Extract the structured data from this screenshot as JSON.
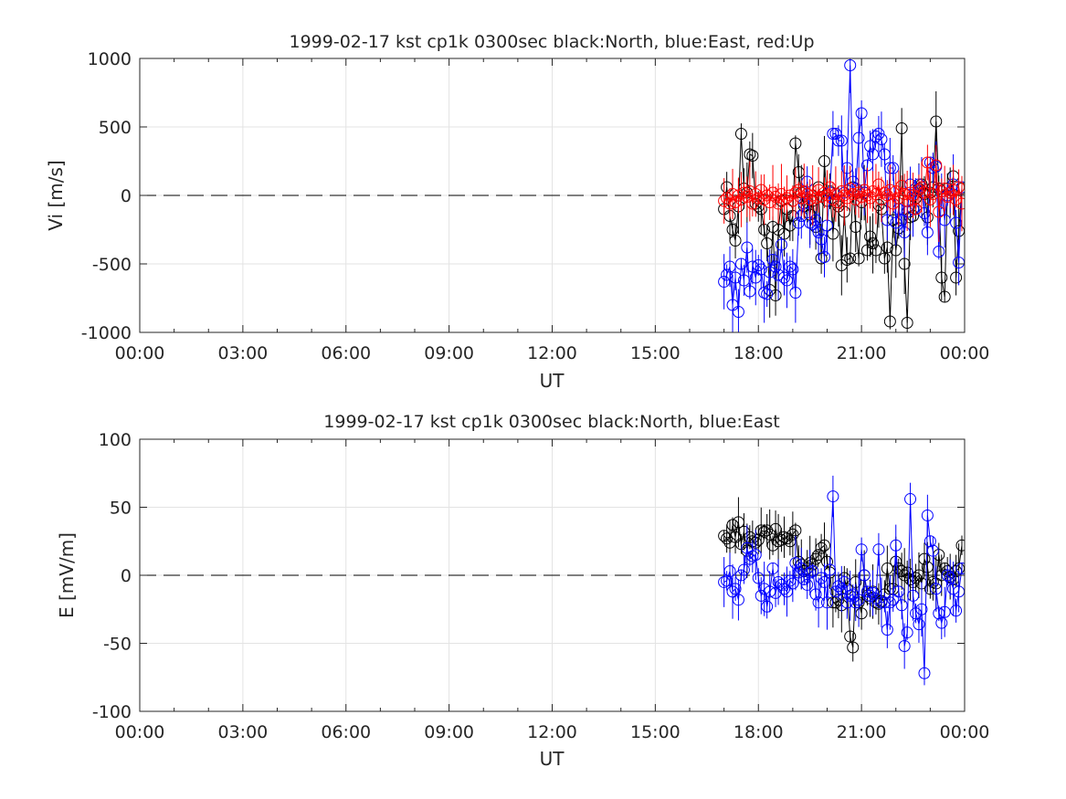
{
  "colors": {
    "north": "#000000",
    "east": "#0000ff",
    "up": "#ff0000",
    "grid": "#e3e3e3",
    "axis": "#262626"
  },
  "chart_data": [
    {
      "type": "scatter",
      "title": "1999-02-17 kst cp1k 0300sec black:North, blue:East, red:Up",
      "xlabel": "UT",
      "ylabel": "Vi [m/s]",
      "xlim": [
        0,
        24
      ],
      "ylim": [
        -1000,
        1000
      ],
      "x_ticks": [
        "00:00",
        "03:00",
        "06:00",
        "09:00",
        "12:00",
        "15:00",
        "18:00",
        "21:00",
        "00:00"
      ],
      "y_ticks": [
        "1000",
        "500",
        "0",
        "-500",
        "-1000"
      ],
      "grid": true,
      "reference_line_y": 0,
      "x_units": "hours UT",
      "series": [
        {
          "name": "North",
          "color": "black",
          "x": [
            17.0,
            17.08,
            17.17,
            17.25,
            17.33,
            17.42,
            17.5,
            17.58,
            17.67,
            17.75,
            17.83,
            17.92,
            18.0,
            18.08,
            18.17,
            18.25,
            18.33,
            18.42,
            18.5,
            18.58,
            18.67,
            18.75,
            18.83,
            18.92,
            19.0,
            19.08,
            19.17,
            19.25,
            19.33,
            19.42,
            19.5,
            19.58,
            19.67,
            19.75,
            19.83,
            19.92,
            20.0,
            20.08,
            20.17,
            20.25,
            20.33,
            20.42,
            20.5,
            20.58,
            20.67,
            20.75,
            20.83,
            20.92,
            21.0,
            21.08,
            21.17,
            21.25,
            21.33,
            21.42,
            21.5,
            21.58,
            21.67,
            21.75,
            21.83,
            21.92,
            22.0,
            22.08,
            22.17,
            22.25,
            22.33,
            22.42,
            22.5,
            22.58,
            22.67,
            22.75,
            22.83,
            22.92,
            23.0,
            23.08,
            23.17,
            23.25,
            23.33,
            23.42,
            23.5,
            23.58,
            23.67,
            23.75,
            23.83,
            23.92
          ],
          "y": [
            -100,
            60,
            -150,
            -250,
            -330,
            -80,
            450,
            50,
            20,
            300,
            290,
            -60,
            -80,
            -100,
            -250,
            -350,
            -690,
            -230,
            -730,
            -250,
            -40,
            -280,
            -100,
            -220,
            -150,
            380,
            170,
            20,
            -80,
            -50,
            -140,
            -40,
            -230,
            60,
            -460,
            250,
            -40,
            30,
            -280,
            -50,
            -80,
            -510,
            -120,
            -470,
            -460,
            60,
            -230,
            -460,
            -50,
            20,
            -400,
            -300,
            -350,
            -400,
            -70,
            -100,
            -460,
            -380,
            -920,
            -180,
            -400,
            -240,
            490,
            -500,
            -930,
            -160,
            -150,
            -20,
            50,
            80,
            10,
            -160,
            20,
            60,
            540,
            50,
            -600,
            -740,
            50,
            20,
            140,
            -600,
            -260,
            50
          ]
        },
        {
          "name": "East",
          "color": "blue",
          "x": [
            17.0,
            17.08,
            17.17,
            17.25,
            17.33,
            17.42,
            17.5,
            17.58,
            17.67,
            17.75,
            17.83,
            17.92,
            18.0,
            18.08,
            18.17,
            18.25,
            18.33,
            18.42,
            18.5,
            18.58,
            18.67,
            18.75,
            18.83,
            18.92,
            19.0,
            19.08,
            19.17,
            19.25,
            19.33,
            19.42,
            19.5,
            19.58,
            19.67,
            19.75,
            19.83,
            19.92,
            20.0,
            20.08,
            20.17,
            20.25,
            20.33,
            20.42,
            20.5,
            20.58,
            20.67,
            20.75,
            20.83,
            20.92,
            21.0,
            21.08,
            21.17,
            21.25,
            21.33,
            21.42,
            21.5,
            21.58,
            21.67,
            21.75,
            21.83,
            21.92,
            22.0,
            22.08,
            22.17,
            22.25,
            22.33,
            22.42,
            22.5,
            22.58,
            22.67,
            22.75,
            22.83,
            22.92,
            23.0,
            23.08,
            23.17,
            23.25,
            23.33,
            23.42,
            23.5,
            23.58,
            23.67,
            23.75,
            23.83,
            23.92
          ],
          "y": [
            -630,
            -580,
            -520,
            -800,
            -600,
            -850,
            -500,
            -620,
            -380,
            -700,
            -520,
            -600,
            -510,
            -540,
            -710,
            -720,
            -560,
            -470,
            -520,
            -580,
            -360,
            -600,
            -620,
            -520,
            -540,
            -710,
            -200,
            -150,
            -60,
            100,
            -200,
            -210,
            -180,
            -270,
            -320,
            -450,
            -220,
            20,
            450,
            450,
            400,
            400,
            20,
            200,
            950,
            100,
            50,
            420,
            600,
            20,
            220,
            360,
            300,
            430,
            450,
            410,
            300,
            -180,
            200,
            200,
            -200,
            -100,
            -180,
            -270,
            -120,
            80,
            -100,
            50,
            80,
            60,
            -130,
            -270,
            240,
            200,
            210,
            -410,
            30,
            -180,
            0,
            20,
            80,
            -200,
            -490,
            60
          ]
        },
        {
          "name": "Up",
          "color": "red",
          "x": [
            17.0,
            17.08,
            17.17,
            17.25,
            17.33,
            17.42,
            17.5,
            17.58,
            17.67,
            17.75,
            17.83,
            17.92,
            18.0,
            18.08,
            18.17,
            18.25,
            18.33,
            18.42,
            18.5,
            18.58,
            18.67,
            18.75,
            18.83,
            18.92,
            19.0,
            19.08,
            19.17,
            19.25,
            19.33,
            19.42,
            19.5,
            19.58,
            19.67,
            19.75,
            19.83,
            19.92,
            20.0,
            20.08,
            20.17,
            20.25,
            20.33,
            20.42,
            20.5,
            20.58,
            20.67,
            20.75,
            20.83,
            20.92,
            21.0,
            21.08,
            21.17,
            21.25,
            21.33,
            21.42,
            21.5,
            21.58,
            21.67,
            21.75,
            21.83,
            21.92,
            22.0,
            22.08,
            22.17,
            22.25,
            22.33,
            22.42,
            22.5,
            22.58,
            22.67,
            22.75,
            22.83,
            22.92,
            23.0,
            23.08,
            23.17,
            23.25,
            23.33,
            23.42,
            23.5,
            23.58,
            23.67,
            23.75,
            23.83,
            23.92
          ],
          "y": [
            -40,
            -20,
            -60,
            10,
            -50,
            0,
            -30,
            20,
            -10,
            30,
            -60,
            10,
            -20,
            40,
            -30,
            0,
            -50,
            20,
            -10,
            -60,
            10,
            -30,
            -20,
            0,
            -40,
            20,
            40,
            -20,
            30,
            10,
            -30,
            0,
            -20,
            40,
            -10,
            20,
            0,
            60,
            -30,
            10,
            -50,
            30,
            0,
            -20,
            50,
            10,
            -30,
            20,
            -10,
            40,
            0,
            -20,
            30,
            10,
            80,
            -30,
            20,
            0,
            40,
            -60,
            30,
            -20,
            70,
            10,
            -40,
            20,
            0,
            -100,
            40,
            60,
            20,
            240,
            -30,
            10,
            220,
            -120,
            30,
            50,
            -10,
            20,
            40,
            -30,
            60,
            -60
          ]
        }
      ]
    },
    {
      "type": "scatter",
      "title": "1999-02-17 kst cp1k 0300sec black:North, blue:East",
      "xlabel": "UT",
      "ylabel": "E [mV/m]",
      "xlim": [
        0,
        24
      ],
      "ylim": [
        -100,
        100
      ],
      "x_ticks": [
        "00:00",
        "03:00",
        "06:00",
        "09:00",
        "12:00",
        "15:00",
        "18:00",
        "21:00",
        "00:00"
      ],
      "y_ticks": [
        "100",
        "50",
        "0",
        "-50",
        "-100"
      ],
      "grid": true,
      "reference_line_y": 0,
      "x_units": "hours UT",
      "series": [
        {
          "name": "North",
          "color": "black",
          "x": [
            17.0,
            17.08,
            17.17,
            17.25,
            17.33,
            17.42,
            17.5,
            17.58,
            17.67,
            17.75,
            17.83,
            17.92,
            18.0,
            18.08,
            18.17,
            18.25,
            18.33,
            18.42,
            18.5,
            18.58,
            18.67,
            18.75,
            18.83,
            18.92,
            19.0,
            19.08,
            19.17,
            19.25,
            19.33,
            19.42,
            19.5,
            19.58,
            19.67,
            19.75,
            19.83,
            19.92,
            20.0,
            20.08,
            20.17,
            20.25,
            20.33,
            20.42,
            20.5,
            20.58,
            20.67,
            20.75,
            20.83,
            20.92,
            21.0,
            21.08,
            21.17,
            21.25,
            21.33,
            21.42,
            21.5,
            21.58,
            21.67,
            21.75,
            21.83,
            21.92,
            22.0,
            22.08,
            22.17,
            22.25,
            22.33,
            22.42,
            22.5,
            22.58,
            22.67,
            22.75,
            22.83,
            22.92,
            23.0,
            23.08,
            23.17,
            23.25,
            23.33,
            23.42,
            23.5,
            23.58,
            23.67,
            23.75,
            23.83,
            23.92
          ],
          "y": [
            29,
            27,
            24,
            37,
            28,
            39,
            23,
            32,
            18,
            28,
            25,
            24,
            26,
            33,
            32,
            33,
            30,
            22,
            34,
            25,
            26,
            28,
            27,
            25,
            30,
            33,
            10,
            8,
            3,
            5,
            9,
            8,
            12,
            15,
            20,
            22,
            10,
            2,
            -20,
            -20,
            -18,
            -22,
            -2,
            -10,
            -45,
            -53,
            -5,
            -20,
            -28,
            0,
            -15,
            -17,
            -12,
            -20,
            -21,
            -19,
            -14,
            5,
            -10,
            -10,
            10,
            5,
            3,
            0,
            2,
            -3,
            -5,
            -2,
            0,
            -6,
            12,
            6,
            -10,
            -5,
            -6,
            15,
            0,
            5,
            3,
            -1,
            -3,
            3,
            5,
            22
          ]
        },
        {
          "name": "East",
          "color": "blue",
          "x": [
            17.0,
            17.08,
            17.17,
            17.25,
            17.33,
            17.42,
            17.5,
            17.58,
            17.67,
            17.75,
            17.83,
            17.92,
            18.0,
            18.08,
            18.17,
            18.25,
            18.33,
            18.42,
            18.5,
            18.58,
            18.67,
            18.75,
            18.83,
            18.92,
            19.0,
            19.08,
            19.17,
            19.25,
            19.33,
            19.42,
            19.5,
            19.58,
            19.67,
            19.75,
            19.83,
            19.92,
            20.0,
            20.08,
            20.17,
            20.25,
            20.33,
            20.42,
            20.5,
            20.58,
            20.67,
            20.75,
            20.83,
            20.92,
            21.0,
            21.08,
            21.17,
            21.25,
            21.33,
            21.42,
            21.5,
            21.58,
            21.67,
            21.75,
            21.83,
            21.92,
            22.0,
            22.08,
            22.17,
            22.25,
            22.33,
            22.42,
            22.5,
            22.58,
            22.67,
            22.75,
            22.83,
            22.92,
            23.0,
            23.08,
            23.17,
            23.25,
            23.33,
            23.42,
            23.5,
            23.58,
            23.67,
            23.75,
            23.83,
            23.92
          ],
          "y": [
            -5,
            -4,
            3,
            -12,
            -10,
            -18,
            0,
            4,
            20,
            12,
            14,
            15,
            -2,
            -15,
            -10,
            -23,
            -12,
            5,
            -13,
            -5,
            -7,
            -10,
            -12,
            -4,
            -6,
            9,
            2,
            5,
            -3,
            -7,
            2,
            3,
            -14,
            -20,
            -2,
            -5,
            -20,
            4,
            58,
            -12,
            -8,
            -10,
            -5,
            -20,
            -15,
            -14,
            -20,
            -18,
            19,
            0,
            -12,
            -15,
            -13,
            -17,
            19,
            -20,
            -20,
            -40,
            -20,
            -18,
            22,
            -12,
            -22,
            -52,
            -42,
            56,
            -15,
            -28,
            -36,
            -25,
            -72,
            44,
            25,
            18,
            -10,
            -28,
            -35,
            -27,
            0,
            -2,
            -10,
            -26,
            -12,
            5
          ]
        }
      ]
    }
  ]
}
